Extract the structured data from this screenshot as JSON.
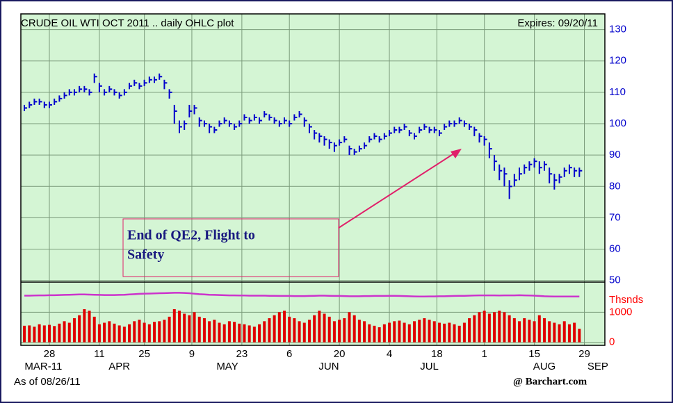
{
  "chart_data": [
    {
      "type": "ohlc",
      "title": "CRUDE OIL WTI OCT 2011 .. daily OHLC plot",
      "subtitle": "Expires: 09/20/11",
      "color": "#0000cc",
      "background": "#d4f5d4",
      "grid": true,
      "ylim": [
        49.5,
        135
      ],
      "yticks": [
        50,
        60,
        70,
        80,
        90,
        100,
        110,
        120,
        130
      ],
      "xlim": [
        -0.7,
        116.1
      ],
      "xticks": [
        {
          "value": 5,
          "label": "28"
        },
        {
          "value": 15,
          "label": "11"
        },
        {
          "value": 24,
          "label": "25"
        },
        {
          "value": 33.5,
          "label": "9"
        },
        {
          "value": 43.5,
          "label": "23"
        },
        {
          "value": 53,
          "label": "6"
        },
        {
          "value": 63,
          "label": "20"
        },
        {
          "value": 73,
          "label": "4"
        },
        {
          "value": 82.5,
          "label": "18"
        },
        {
          "value": 92,
          "label": "1"
        },
        {
          "value": 102,
          "label": "15"
        },
        {
          "value": 112,
          "label": "29"
        }
      ],
      "month_ticks": [
        {
          "value": 3.8,
          "label": "MAR-11"
        },
        {
          "value": 19,
          "label": "APR"
        },
        {
          "value": 40.6,
          "label": "MAY"
        },
        {
          "value": 60.9,
          "label": "JUN"
        },
        {
          "value": 81,
          "label": "JUL"
        },
        {
          "value": 104,
          "label": "AUG"
        },
        {
          "value": 114.7,
          "label": "SEP"
        }
      ],
      "high": [
        106,
        107,
        108,
        108,
        107,
        107,
        108,
        109,
        110,
        111,
        111,
        112,
        112,
        111,
        116,
        113,
        111,
        112,
        111,
        110,
        111,
        113,
        114,
        113,
        114,
        115,
        115,
        116,
        114,
        111,
        106,
        101,
        101,
        106,
        106,
        102,
        101,
        100,
        99,
        101,
        102,
        101,
        100,
        101,
        103,
        102,
        103,
        102,
        104,
        103,
        102,
        101,
        102,
        101,
        103,
        104,
        102,
        100,
        98,
        97,
        96,
        95,
        94,
        95,
        96,
        93,
        92,
        93,
        94,
        96,
        97,
        96,
        97,
        98,
        99,
        99,
        100,
        98,
        97,
        99,
        100,
        99,
        99,
        98,
        100,
        101,
        101,
        102,
        101,
        100,
        99,
        97,
        96,
        94,
        90,
        87,
        86,
        82,
        84,
        86,
        87,
        88,
        89,
        88,
        88,
        86,
        84,
        84,
        86,
        87,
        86,
        86
      ],
      "low": [
        104,
        105,
        106,
        106,
        105,
        105,
        106,
        107,
        108,
        109,
        109,
        110,
        110,
        109,
        113,
        110,
        109,
        110,
        109,
        108,
        109,
        111,
        112,
        111,
        112,
        113,
        113,
        114,
        111,
        108,
        100,
        97,
        98,
        102,
        103,
        99,
        99,
        97,
        97,
        99,
        100,
        99,
        98,
        99,
        101,
        100,
        101,
        100,
        102,
        101,
        100,
        99,
        100,
        99,
        101,
        102,
        99,
        97,
        95,
        94,
        93,
        92,
        91,
        93,
        94,
        90,
        90,
        91,
        92,
        94,
        95,
        94,
        95,
        96,
        97,
        97,
        98,
        96,
        95,
        97,
        98,
        97,
        97,
        96,
        98,
        99,
        99,
        100,
        99,
        98,
        96,
        94,
        93,
        89,
        85,
        82,
        80,
        76,
        80,
        82,
        84,
        85,
        86,
        84,
        85,
        81,
        79,
        81,
        83,
        84,
        83,
        83
      ],
      "close": [
        105,
        106,
        107,
        107,
        106,
        106,
        107,
        108,
        109,
        110,
        110,
        111,
        111,
        110,
        115,
        112,
        110,
        111,
        110,
        109,
        110,
        112,
        113,
        112,
        113,
        114,
        114,
        115,
        113,
        110,
        104,
        99,
        100,
        104,
        105,
        101,
        100,
        99,
        98,
        100,
        101,
        100,
        99,
        100,
        102,
        101,
        102,
        101,
        103,
        102,
        101,
        100,
        101,
        100,
        102,
        103,
        101,
        99,
        97,
        96,
        95,
        94,
        93,
        94,
        95,
        92,
        91,
        92,
        93,
        95,
        96,
        95,
        96,
        97,
        98,
        98,
        99,
        97,
        96,
        98,
        99,
        98,
        98,
        97,
        99,
        100,
        100,
        101,
        100,
        99,
        98,
        96,
        95,
        92,
        88,
        85,
        84,
        80,
        82,
        84,
        86,
        87,
        88,
        86,
        87,
        84,
        82,
        83,
        85,
        86,
        85,
        85
      ],
      "annotation": {
        "lines": [
          "End of QE2, Flight to",
          "Safety"
        ],
        "color": "#e0206a",
        "text_color": "#1a1a80"
      }
    },
    {
      "type": "volume",
      "ylabel": "Thsnds",
      "ylim": [
        -100,
        2000
      ],
      "yticks": [
        0,
        1000
      ],
      "label_color": "#ff0000",
      "series": [
        {
          "type": "bar",
          "color": "#e00000",
          "values": [
            550,
            560,
            520,
            600,
            560,
            580,
            540,
            620,
            700,
            650,
            800,
            900,
            1100,
            1050,
            850,
            600,
            650,
            700,
            620,
            560,
            520,
            600,
            700,
            750,
            650,
            600,
            680,
            700,
            750,
            850,
            1100,
            1050,
            950,
            900,
            1000,
            850,
            800,
            700,
            750,
            650,
            600,
            700,
            680,
            620,
            600,
            560,
            520,
            600,
            700,
            800,
            900,
            1000,
            1050,
            850,
            800,
            700,
            650,
            750,
            900,
            1050,
            950,
            850,
            700,
            750,
            800,
            1000,
            900,
            750,
            700,
            600,
            550,
            500,
            600,
            650,
            700,
            720,
            650,
            600,
            700,
            750,
            800,
            750,
            700,
            650,
            620,
            650,
            600,
            550,
            650,
            800,
            900,
            1000,
            1050,
            950,
            1000,
            1050,
            1000,
            900,
            800,
            700,
            800,
            750,
            700,
            900,
            800,
            700,
            650,
            600,
            700,
            600,
            650,
            450
          ]
        },
        {
          "type": "line",
          "color": "#cc33cc",
          "values": [
            1550,
            1550,
            1555,
            1560,
            1560,
            1565,
            1565,
            1570,
            1575,
            1580,
            1585,
            1590,
            1590,
            1585,
            1580,
            1575,
            1570,
            1570,
            1570,
            1575,
            1580,
            1590,
            1600,
            1610,
            1615,
            1620,
            1625,
            1630,
            1635,
            1640,
            1645,
            1645,
            1640,
            1630,
            1615,
            1600,
            1590,
            1580,
            1575,
            1570,
            1565,
            1560,
            1560,
            1555,
            1555,
            1550,
            1550,
            1550,
            1550,
            1545,
            1545,
            1540,
            1540,
            1540,
            1535,
            1535,
            1535,
            1540,
            1545,
            1550,
            1550,
            1545,
            1540,
            1540,
            1535,
            1530,
            1530,
            1530,
            1535,
            1535,
            1540,
            1540,
            1540,
            1545,
            1545,
            1540,
            1535,
            1530,
            1525,
            1520,
            1520,
            1525,
            1525,
            1530,
            1530,
            1535,
            1540,
            1545,
            1545,
            1550,
            1555,
            1560,
            1560,
            1560,
            1560,
            1555,
            1560,
            1560,
            1560,
            1565,
            1560,
            1555,
            1550,
            1540,
            1530,
            1525,
            1520,
            1520,
            1520,
            1520,
            1520,
            1520
          ]
        }
      ]
    }
  ],
  "footer": {
    "as_of": "As of 08/26/11",
    "source": "@ Barchart.com"
  }
}
